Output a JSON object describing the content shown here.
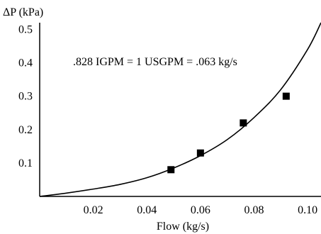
{
  "chart_data": {
    "type": "scatter",
    "title": "",
    "ylabel": "ΔP (kPa)",
    "xlabel": "Flow (kg/s)",
    "annotation": ".828 IGPM = 1 USGPM = .063 kg/s",
    "xlim": [
      0,
      0.105
    ],
    "ylim": [
      0,
      0.52
    ],
    "x_ticks": [
      0.02,
      0.04,
      0.06,
      0.08,
      0.1
    ],
    "x_tick_labels": [
      "0.02",
      "0.04",
      "0.06",
      "0.08",
      "0.10"
    ],
    "y_ticks": [
      0.1,
      0.2,
      0.3,
      0.4,
      0.5
    ],
    "y_tick_labels": [
      "0.1",
      "0.2",
      "0.3",
      "0.4",
      "0.5"
    ],
    "grid": false,
    "legend": "none",
    "series": [
      {
        "type": "scatter",
        "marker": "square",
        "x": [
          0.049,
          0.06,
          0.076,
          0.092
        ],
        "y": [
          0.08,
          0.13,
          0.22,
          0.3
        ]
      },
      {
        "type": "line",
        "x": [
          0.0,
          0.01,
          0.02,
          0.03,
          0.04,
          0.05,
          0.06,
          0.07,
          0.08,
          0.09,
          0.1,
          0.105
        ],
        "y": [
          0.0,
          0.01,
          0.022,
          0.036,
          0.056,
          0.085,
          0.122,
          0.17,
          0.236,
          0.32,
          0.44,
          0.52
        ]
      }
    ],
    "colors": {
      "ink": "#000000",
      "background": "#ffffff"
    }
  }
}
